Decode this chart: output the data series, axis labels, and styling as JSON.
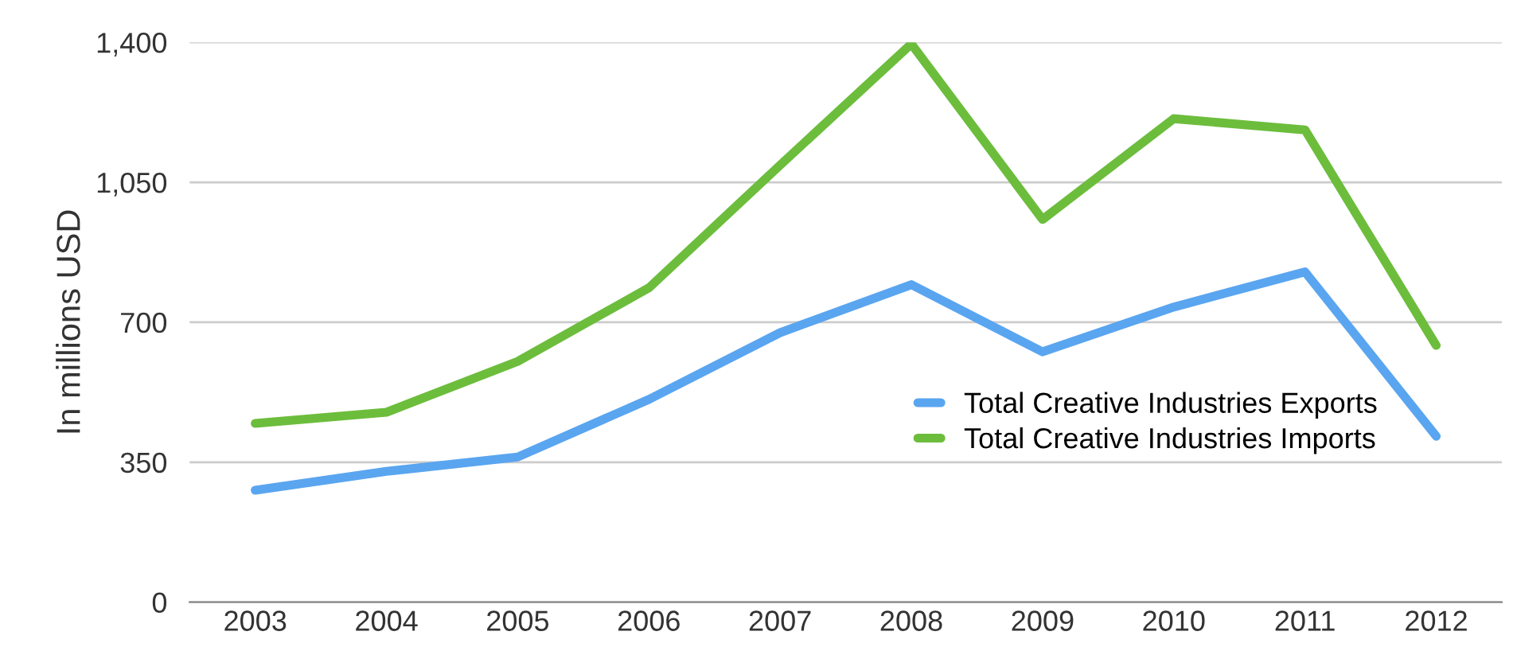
{
  "chart_data": {
    "type": "line",
    "ylabel": "In millions USD",
    "categories": [
      "2003",
      "2004",
      "2005",
      "2006",
      "2007",
      "2008",
      "2009",
      "2010",
      "2011",
      "2012"
    ],
    "series": [
      {
        "name": "Total Creative Industries Exports",
        "color": "#5aa5f0",
        "values": [
          280,
          327,
          363,
          507,
          674,
          794,
          626,
          738,
          826,
          415
        ]
      },
      {
        "name": "Total Creative Industries Imports",
        "color": "#6cbd3c",
        "values": [
          447,
          475,
          602,
          786,
          1093,
          1396,
          957,
          1209,
          1181,
          642
        ]
      }
    ],
    "ylim": [
      0,
      1400
    ],
    "yticks": [
      0,
      350,
      700,
      {
        "value": 1050,
        "label": "1,050"
      },
      {
        "value": 1400,
        "label": "1,400"
      }
    ],
    "grid": "y",
    "legend": "right",
    "marker": "none",
    "line_style": "solid"
  }
}
